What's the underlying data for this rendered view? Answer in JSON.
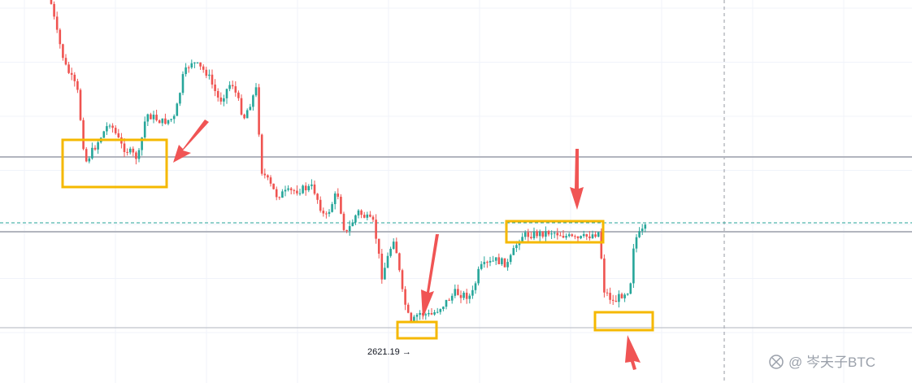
{
  "low_label": "2621.19 →",
  "watermark": "@ 岑夫子BTC"
}
